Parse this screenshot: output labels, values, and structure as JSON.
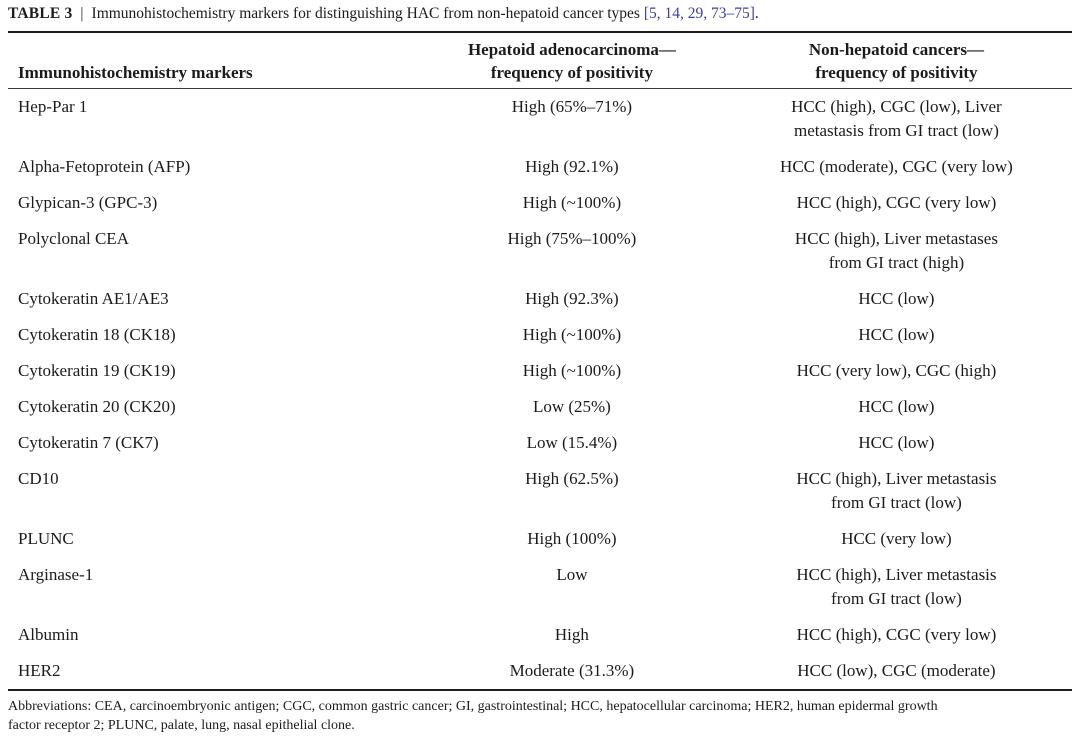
{
  "title": {
    "label": "TABLE 3",
    "separator": "|",
    "caption": "Immunohistochemistry markers for distinguishing HAC from non-hepatoid cancer types",
    "citation": "[5, 14, 29, 73–75]",
    "period": "."
  },
  "colors": {
    "text": "#1b1b1b",
    "citation_link": "#4040a0",
    "rule_dark": "#1c1c1c",
    "rule_header": "#3a3a3a",
    "background": "#ffffff"
  },
  "table": {
    "columns": [
      {
        "label": "Immunohistochemistry markers"
      },
      {
        "label": [
          "Hepatoid adenocarcinoma—",
          "frequency of positivity"
        ]
      },
      {
        "label": [
          "Non-hepatoid cancers—",
          "frequency of positivity"
        ]
      }
    ],
    "rows": [
      {
        "marker": "Hep-Par 1",
        "hac": "High (65%–71%)",
        "non_hepatoid": [
          "HCC (high), CGC (low), Liver",
          "metastasis from GI tract (low)"
        ]
      },
      {
        "marker": "Alpha-Fetoprotein (AFP)",
        "hac": "High (92.1%)",
        "non_hepatoid": "HCC (moderate), CGC (very low)"
      },
      {
        "marker": "Glypican-3 (GPC-3)",
        "hac": "High (~100%)",
        "non_hepatoid": "HCC (high), CGC (very low)"
      },
      {
        "marker": "Polyclonal CEA",
        "hac": "High (75%–100%)",
        "non_hepatoid": [
          "HCC (high), Liver metastases",
          "from GI tract (high)"
        ]
      },
      {
        "marker": "Cytokeratin AE1/AE3",
        "hac": "High (92.3%)",
        "non_hepatoid": "HCC (low)"
      },
      {
        "marker": "Cytokeratin 18 (CK18)",
        "hac": "High (~100%)",
        "non_hepatoid": "HCC (low)"
      },
      {
        "marker": "Cytokeratin 19 (CK19)",
        "hac": "High (~100%)",
        "non_hepatoid": "HCC (very low), CGC (high)"
      },
      {
        "marker": "Cytokeratin 20 (CK20)",
        "hac": "Low (25%)",
        "non_hepatoid": "HCC (low)"
      },
      {
        "marker": "Cytokeratin 7 (CK7)",
        "hac": "Low (15.4%)",
        "non_hepatoid": "HCC (low)"
      },
      {
        "marker": "CD10",
        "hac": "High (62.5%)",
        "non_hepatoid": [
          "HCC (high), Liver metastasis",
          "from GI tract (low)"
        ]
      },
      {
        "marker": "PLUNC",
        "hac": "High (100%)",
        "non_hepatoid": "HCC (very low)"
      },
      {
        "marker": "Arginase-1",
        "hac": "Low",
        "non_hepatoid": [
          "HCC (high), Liver metastasis",
          "from GI tract (low)"
        ]
      },
      {
        "marker": "Albumin",
        "hac": "High",
        "non_hepatoid": "HCC (high), CGC (very low)"
      },
      {
        "marker": "HER2",
        "hac": "Moderate (31.3%)",
        "non_hepatoid": "HCC (low), CGC (moderate)"
      }
    ]
  },
  "footnote": {
    "lines": [
      "Abbreviations: CEA, carcinoembryonic antigen; CGC, common gastric cancer; GI, gastrointestinal; HCC, hepatocellular carcinoma; HER2, human epidermal growth",
      "factor receptor 2; PLUNC, palate, lung, nasal epithelial clone."
    ]
  }
}
